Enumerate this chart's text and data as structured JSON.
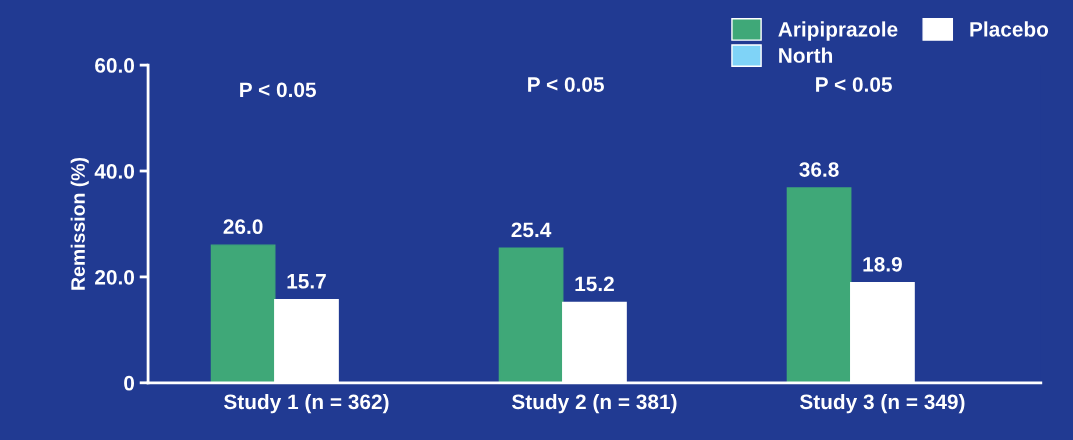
{
  "chart_data": {
    "type": "bar",
    "ylabel": "Remission (%)",
    "categories": [
      "Study 1 (n = 362)",
      "Study 2 (n = 381)",
      "Study 3 (n = 349)"
    ],
    "series": [
      {
        "name": "Aripiprazole",
        "color": "#3fa878",
        "values": [
          26.0,
          25.4,
          36.8
        ],
        "value_labels": [
          "26.0",
          "25.4",
          "36.8"
        ]
      },
      {
        "name": "Placebo",
        "color": "#ffffff",
        "values": [
          15.7,
          15.2,
          18.9
        ],
        "value_labels": [
          "15.7",
          "15.2",
          "18.9"
        ]
      },
      {
        "name": "North",
        "color": "#7fd3f7",
        "values": [
          null,
          null,
          null
        ]
      }
    ],
    "ylim": [
      0,
      60
    ],
    "yticks": [
      0,
      {
        "value": 20,
        "label": "20.0"
      },
      {
        "value": 40,
        "label": "40.0"
      },
      {
        "value": 60,
        "label": "60.0"
      }
    ],
    "grid": false,
    "legend": "top right",
    "annotations": [
      "P < 0.05",
      "P < 0.05",
      "P < 0.05"
    ]
  }
}
